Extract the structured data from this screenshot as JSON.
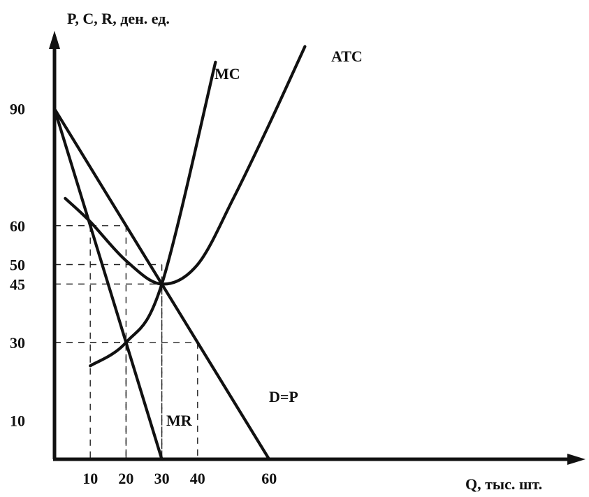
{
  "chart_data": {
    "type": "line",
    "title": "",
    "ylabel": "P, C, R, ден. ед.",
    "xlabel": "Q, тыс. шт.",
    "x_ticks": [
      10,
      20,
      30,
      40,
      60
    ],
    "y_ticks": [
      10,
      30,
      45,
      50,
      60,
      90
    ],
    "x_tick_labels": [
      "10",
      "20",
      "30",
      "40",
      "60"
    ],
    "y_tick_labels": [
      "10",
      "30",
      "45",
      "50",
      "60",
      "90"
    ],
    "xlim": [
      0,
      150
    ],
    "ylim": [
      0,
      106
    ],
    "grid": false,
    "series": [
      {
        "name": "D=P",
        "x": [
          0,
          60
        ],
        "y": [
          90,
          0
        ]
      },
      {
        "name": "MR",
        "x": [
          0,
          30
        ],
        "y": [
          90,
          0
        ]
      },
      {
        "name": "MC",
        "x": [
          10,
          20,
          30,
          45
        ],
        "y": [
          24,
          30,
          45,
          102
        ]
      },
      {
        "name": "ATC",
        "x": [
          3,
          10,
          20,
          30,
          40,
          50,
          60,
          70
        ],
        "y": [
          67,
          61,
          51,
          45,
          50,
          67,
          86,
          106
        ]
      }
    ],
    "reference_lines": [
      {
        "x": 10,
        "y": 60
      },
      {
        "x": 20,
        "y": 60
      },
      {
        "x": 20,
        "y": 30
      },
      {
        "x": 40,
        "y": 30
      },
      {
        "x": 30,
        "y": 45
      },
      {
        "x": 30,
        "y": 50
      }
    ]
  }
}
